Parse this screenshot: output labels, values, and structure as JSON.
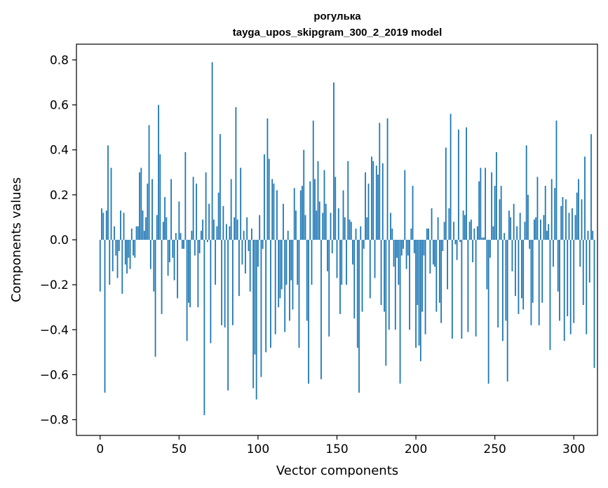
{
  "chart_data": {
    "type": "bar",
    "title": "рогулька",
    "subtitle": "tayga_upos_skipgram_300_2_2019 model",
    "xlabel": "Vector components",
    "ylabel": "Components values",
    "xlim": [
      -15,
      315
    ],
    "ylim": [
      -0.87,
      0.87
    ],
    "xticks": [
      0,
      50,
      100,
      150,
      200,
      250,
      300
    ],
    "yticks": [
      -0.8,
      -0.6,
      -0.4,
      -0.2,
      0.0,
      0.2,
      0.4,
      0.6,
      0.8
    ],
    "xtick_labels": [
      "0",
      "50",
      "100",
      "150",
      "200",
      "250",
      "300"
    ],
    "ytick_labels": [
      "−0.8",
      "−0.6",
      "−0.4",
      "−0.2",
      "0.0",
      "0.2",
      "0.4",
      "0.6",
      "0.8"
    ],
    "color": "#1f77b4",
    "values": [
      -0.23,
      0.14,
      0.12,
      -0.68,
      0.13,
      0.42,
      -0.2,
      0.32,
      -0.14,
      0.06,
      -0.07,
      -0.17,
      -0.05,
      0.13,
      -0.24,
      0.12,
      -0.11,
      -0.15,
      -0.08,
      -0.13,
      0.05,
      -0.07,
      -0.08,
      0.06,
      0.06,
      0.3,
      0.32,
      0.13,
      0.04,
      0.1,
      0.25,
      0.51,
      -0.13,
      0.27,
      -0.23,
      -0.52,
      0.11,
      0.6,
      0.38,
      -0.33,
      0.08,
      0.19,
      0.1,
      -0.16,
      -0.1,
      0.27,
      -0.08,
      -0.18,
      0.03,
      -0.26,
      0.17,
      0.03,
      -0.04,
      -0.04,
      0.39,
      -0.45,
      -0.28,
      -0.3,
      0.04,
      0.28,
      -0.07,
      0.25,
      -0.3,
      -0.06,
      0.04,
      0.09,
      -0.78,
      0.3,
      -0.01,
      0.16,
      -0.46,
      0.79,
      0.09,
      -0.2,
      0.06,
      0.21,
      0.47,
      -0.38,
      0.15,
      -0.39,
      0.07,
      -0.67,
      0.06,
      0.27,
      -0.38,
      0.1,
      0.59,
      0.09,
      -0.25,
      0.32,
      -0.11,
      0.04,
      -0.15,
      0.1,
      -0.05,
      -0.23,
      0.05,
      -0.66,
      -0.51,
      -0.71,
      -0.12,
      0.11,
      -0.61,
      -0.04,
      0.38,
      -0.5,
      0.54,
      0.36,
      -0.48,
      0.27,
      0.25,
      -0.42,
      0.22,
      -0.3,
      -0.26,
      -0.22,
      0.16,
      -0.41,
      -0.2,
      0.04,
      -0.36,
      -0.18,
      -0.31,
      0.23,
      0.13,
      -0.2,
      -0.48,
      0.22,
      0.24,
      0.4,
      0.11,
      -0.36,
      -0.64,
      0.26,
      -0.2,
      0.53,
      0.27,
      0.13,
      0.35,
      0.17,
      -0.62,
      0.12,
      0.31,
      0.16,
      -0.14,
      -0.43,
      0.12,
      -0.06,
      0.7,
      0.28,
      -0.17,
      0.14,
      -0.33,
      -0.2,
      0.22,
      0.1,
      -0.2,
      0.35,
      0.09,
      0.08,
      -0.11,
      -0.35,
      0.05,
      -0.48,
      -0.68,
      0.06,
      -0.32,
      -0.04,
      0.3,
      0.1,
      0.25,
      -0.26,
      0.37,
      0.35,
      -0.17,
      0.33,
      0.29,
      0.52,
      -0.29,
      0.34,
      -0.32,
      -0.56,
      0.54,
      -0.4,
      0.12,
      0.05,
      -0.12,
      -0.4,
      -0.08,
      -0.2,
      -0.64,
      -0.07,
      -0.04,
      0.31,
      -0.13,
      -0.07,
      -0.4,
      0.05,
      0.24,
      -0.06,
      -0.48,
      -0.29,
      -0.47,
      -0.54,
      -0.32,
      -0.07,
      -0.42,
      0.05,
      0.05,
      -0.15,
      0.14,
      -0.11,
      -0.12,
      -0.32,
      0.1,
      -0.28,
      -0.37,
      -0.05,
      0.08,
      0.41,
      -0.22,
      0.14,
      0.56,
      -0.44,
      0.08,
      -0.02,
      -0.09,
      0.49,
      -0.01,
      -0.44,
      0.13,
      0.11,
      0.5,
      -0.41,
      0.08,
      0.09,
      -0.1,
      0.05,
      -0.43,
      0.06,
      0.26,
      0.32,
      0.01,
      0.01,
      0.32,
      -0.22,
      -0.64,
      -0.08,
      0.3,
      0.06,
      0.24,
      0.39,
      -0.39,
      0.18,
      0.24,
      -0.45,
      0.03,
      -0.36,
      -0.63,
      0.13,
      0.1,
      -0.14,
      0.16,
      -0.25,
      0.06,
      -0.33,
      0.12,
      -0.26,
      -0.31,
      0.08,
      0.42,
      0.2,
      -0.04,
      -0.38,
      -0.28,
      0.09,
      0.1,
      0.28,
      -0.38,
      0.09,
      -0.28,
      0.11,
      0.24,
      0.04,
      0.07,
      -0.49,
      0.27,
      -0.12,
      0.23,
      0.53,
      -0.23,
      -0.36,
      0.15,
      0.19,
      -0.45,
      0.18,
      -0.34,
      0.12,
      -0.42,
      0.14,
      -0.37,
      0.11,
      0.21,
      0.27,
      -0.12,
      0.18,
      -0.29,
      0.37,
      -0.42,
      0.04,
      -0.19,
      0.47,
      0.04,
      -0.57
    ]
  }
}
